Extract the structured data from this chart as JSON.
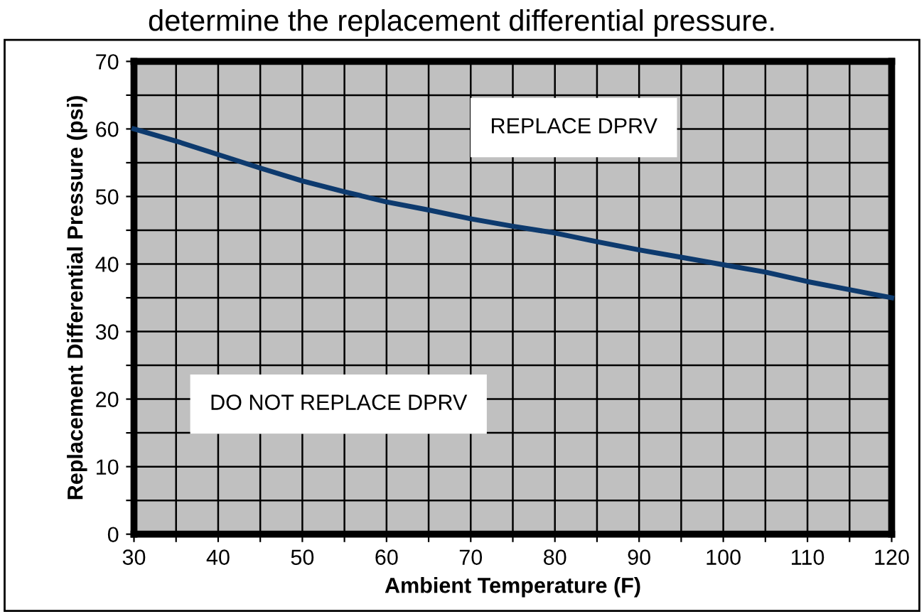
{
  "chart_data": {
    "type": "line",
    "title": "determine the replacement differential pressure.",
    "xlabel": "Ambient Temperature (F)",
    "ylabel": "Replacement Differential Pressure (psi)",
    "x": [
      30,
      35,
      40,
      45,
      50,
      55,
      60,
      65,
      70,
      75,
      80,
      85,
      90,
      95,
      100,
      105,
      110,
      115,
      120
    ],
    "series": [
      {
        "color": "#0d3a6e",
        "values": [
          60,
          58.2,
          56.2,
          54.2,
          52.3,
          50.7,
          49.2,
          48,
          46.7,
          45.6,
          44.6,
          43.3,
          42.1,
          41,
          39.9,
          38.8,
          37.4,
          36.2,
          35
        ]
      }
    ],
    "xlim": [
      30,
      120
    ],
    "ylim": [
      0,
      70
    ],
    "xticks": [
      30,
      {
        "value": 35,
        "label": null
      },
      40,
      {
        "value": 45,
        "label": null
      },
      50,
      {
        "value": 55,
        "label": null
      },
      60,
      {
        "value": 65,
        "label": null
      },
      70,
      {
        "value": 75,
        "label": null
      },
      80,
      {
        "value": 85,
        "label": null
      },
      90,
      {
        "value": 95,
        "label": null
      },
      100,
      {
        "value": 105,
        "label": null
      },
      110,
      {
        "value": 115,
        "label": null
      },
      120
    ],
    "yticks": [
      0,
      {
        "value": 5,
        "label": null
      },
      10,
      {
        "value": 15,
        "label": null
      },
      20,
      {
        "value": 25,
        "label": null
      },
      30,
      {
        "value": 35,
        "label": null
      },
      40,
      {
        "value": 45,
        "label": null
      },
      50,
      {
        "value": 55,
        "label": null
      },
      60,
      {
        "value": 65,
        "label": null
      },
      70
    ],
    "grid": true,
    "marker": "none",
    "line_style": "solid",
    "annotations": [
      "REPLACE DPRV",
      "DO NOT REPLACE DPRV"
    ]
  }
}
